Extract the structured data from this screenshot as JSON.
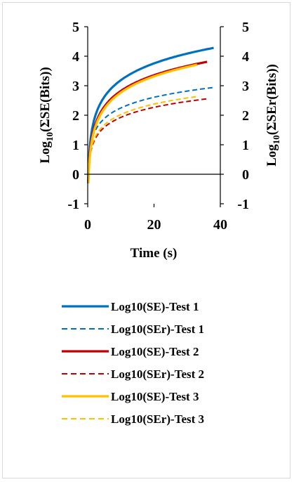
{
  "chart_data": {
    "type": "line",
    "xlabel": "Time (s)",
    "ylabel_left": "Log10(ΣSE(Bits))",
    "ylabel_right": "Log10(ΣSEr(Bits))",
    "xlim": [
      0,
      40
    ],
    "ylim": [
      -1,
      5
    ],
    "x_ticks": [
      "0",
      "20",
      "40"
    ],
    "y_ticks": [
      "-1",
      "0",
      "1",
      "2",
      "3",
      "4",
      "5"
    ],
    "y2_ticks": [
      "-1",
      "0",
      "1",
      "2",
      "3",
      "4",
      "5"
    ],
    "grid": false,
    "legend_position": "bottom",
    "series": [
      {
        "name": "Log10(SE)-Test 1",
        "color": "#0070C0",
        "dash": "solid",
        "t_end": 38,
        "a": 1.3,
        "b": 0.82
      },
      {
        "name": "Log10(SEr)-Test 1",
        "color": "#0070C0",
        "dash": "dashed",
        "t_end": 38,
        "a": 1.05,
        "b": 0.52
      },
      {
        "name": "Log10(SE)-Test 2",
        "color": "#C00000",
        "dash": "solid",
        "t_end": 36,
        "a": 1.05,
        "b": 0.77
      },
      {
        "name": "Log10(SEr)-Test 2",
        "color": "#C00000",
        "dash": "dashed",
        "t_end": 36,
        "a": 0.8,
        "b": 0.49
      },
      {
        "name": "Log10(SE)-Test 3",
        "color": "#FFC000",
        "dash": "solid",
        "t_end": 33,
        "a": 0.95,
        "b": 0.79
      },
      {
        "name": "Log10(SEr)-Test 3",
        "color": "#FFC000",
        "dash": "dashed",
        "t_end": 33,
        "a": 0.85,
        "b": 0.51
      }
    ]
  }
}
